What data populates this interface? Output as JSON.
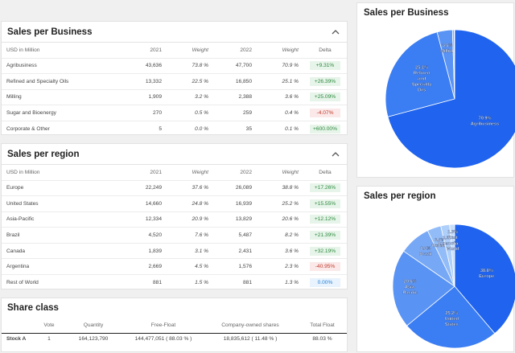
{
  "sales_business": {
    "title": "Sales per Business",
    "headers": [
      "USD in Million",
      "2021",
      "Weight",
      "2022",
      "Weight",
      "Delta"
    ],
    "rows": [
      {
        "name": "Agribusiness",
        "y2021": "43,636",
        "w2021": "73.8 %",
        "y2022": "47,700",
        "w2022": "70.9 %",
        "delta": "+9.31%",
        "tone": "pos"
      },
      {
        "name": "Refined and Specialty Oils",
        "y2021": "13,332",
        "w2021": "22.5 %",
        "y2022": "16,850",
        "w2022": "25.1 %",
        "delta": "+26.39%",
        "tone": "pos"
      },
      {
        "name": "Milling",
        "y2021": "1,909",
        "w2021": "3.2 %",
        "y2022": "2,388",
        "w2022": "3.6 %",
        "delta": "+25.09%",
        "tone": "pos"
      },
      {
        "name": "Sugar and Bioenergy",
        "y2021": "270",
        "w2021": "0.5 %",
        "y2022": "259",
        "w2022": "0.4 %",
        "delta": "-4.07%",
        "tone": "neg"
      },
      {
        "name": "Corporate & Other",
        "y2021": "5",
        "w2021": "0.0 %",
        "y2022": "35",
        "w2022": "0.1 %",
        "delta": "+600.00%",
        "tone": "pos"
      }
    ]
  },
  "sales_region": {
    "title": "Sales per region",
    "headers": [
      "USD in Million",
      "2021",
      "Weight",
      "2022",
      "Weight",
      "Delta"
    ],
    "rows": [
      {
        "name": "Europe",
        "y2021": "22,249",
        "w2021": "37.6 %",
        "y2022": "26,089",
        "w2022": "38.8 %",
        "delta": "+17.26%",
        "tone": "pos"
      },
      {
        "name": "United States",
        "y2021": "14,660",
        "w2021": "24.8 %",
        "y2022": "16,939",
        "w2022": "25.2 %",
        "delta": "+15.55%",
        "tone": "pos"
      },
      {
        "name": "Asia-Pacific",
        "y2021": "12,334",
        "w2021": "20.9 %",
        "y2022": "13,829",
        "w2022": "20.6 %",
        "delta": "+12.12%",
        "tone": "pos"
      },
      {
        "name": "Brazil",
        "y2021": "4,520",
        "w2021": "7.6 %",
        "y2022": "5,487",
        "w2022": "8.2 %",
        "delta": "+21.39%",
        "tone": "pos"
      },
      {
        "name": "Canada",
        "y2021": "1,839",
        "w2021": "3.1 %",
        "y2022": "2,431",
        "w2022": "3.6 %",
        "delta": "+32.19%",
        "tone": "pos"
      },
      {
        "name": "Argentina",
        "y2021": "2,669",
        "w2021": "4.5 %",
        "y2022": "1,576",
        "w2022": "2.3 %",
        "delta": "-40.95%",
        "tone": "neg"
      },
      {
        "name": "Rest of World",
        "y2021": "881",
        "w2021": "1.5 %",
        "y2022": "881",
        "w2022": "1.3 %",
        "delta": "0.00%",
        "tone": "neu"
      }
    ]
  },
  "share_class": {
    "title": "Share class",
    "headers": [
      "",
      "Vote",
      "Quantity",
      "Free-Float",
      "Company-owned shares",
      "Total Float"
    ],
    "rows": [
      {
        "name": "Stock A",
        "vote": "1",
        "quantity": "164,123,790",
        "free_float": "144,477,051 ( 88.03 % )",
        "owned": "18,835,612 ( 11.48 % )",
        "total_float": "88.03 %"
      }
    ]
  },
  "chart_data": [
    {
      "type": "pie",
      "title": "Sales per Business",
      "series": [
        {
          "label": "Agribusiness",
          "value": 70.9,
          "text": "70.9%",
          "lines": [
            "70.9%",
            "Agribusiness"
          ]
        },
        {
          "label": "Refined and Specialty Oils",
          "value": 25.1,
          "text": "25.1%",
          "lines": [
            "25.1%",
            "Refined",
            "and",
            "Specialty",
            "Oils"
          ]
        },
        {
          "label": "Milling",
          "value": 3.6,
          "text": "3.6%",
          "lines": [
            "3.6%",
            "Milling"
          ]
        },
        {
          "label": "Sugar and Bioenergy",
          "value": 0.4,
          "text": "",
          "lines": []
        },
        {
          "label": "Corporate & Other",
          "value": 0.1,
          "text": "",
          "lines": []
        }
      ]
    },
    {
      "type": "pie",
      "title": "Sales per region",
      "series": [
        {
          "label": "Europe",
          "value": 38.8,
          "lines": [
            "38.8%",
            "Europe"
          ]
        },
        {
          "label": "United States",
          "value": 25.2,
          "lines": [
            "25.2%",
            "United",
            "States"
          ]
        },
        {
          "label": "Asia-Pacific",
          "value": 20.6,
          "lines": [
            "20.6%",
            "Asia-",
            "Pacific"
          ]
        },
        {
          "label": "Brazil",
          "value": 8.2,
          "lines": [
            "8.2%",
            "Brazil"
          ]
        },
        {
          "label": "Canada",
          "value": 3.6,
          "lines": [
            "3.6%",
            "Canada"
          ]
        },
        {
          "label": "Argentina",
          "value": 2.3,
          "lines": [
            "2.3%",
            "Argentina"
          ]
        },
        {
          "label": "Rest of World",
          "value": 1.3,
          "lines": [
            "1.3%",
            "Rest",
            "of",
            "World"
          ]
        }
      ]
    }
  ],
  "colors": {
    "pie_shades": [
      "#1f63ee",
      "#3b7df2",
      "#5993f4",
      "#76a8f6",
      "#92bcf8",
      "#aecff9",
      "#c6defb"
    ],
    "pos": "#2b8a3e",
    "neg": "#c0392b",
    "neu": "#2680d9"
  },
  "icons": {
    "collapse": "chevron-up-icon"
  }
}
